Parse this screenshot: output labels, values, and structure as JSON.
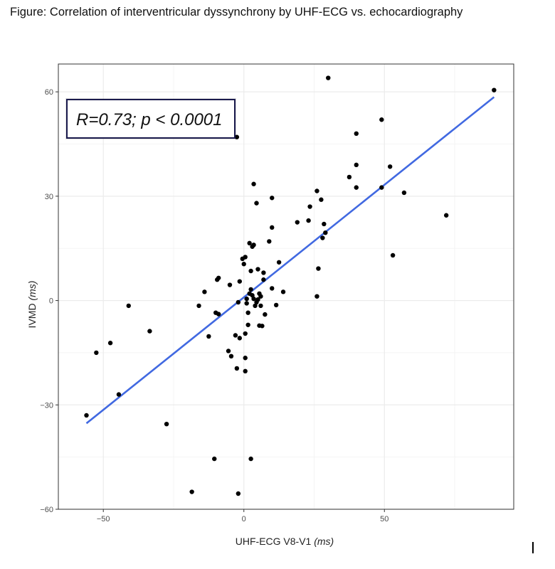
{
  "figure_title": "Figure: Correlation of interventricular dyssynchrony by UHF-ECG vs. echocardiography",
  "colors": {
    "panel_background": "#ffffff",
    "gridline": "#ebebeb",
    "points": "#000000",
    "regression_line": "#4169e1",
    "annotation_border": "#1a1a4d"
  },
  "chart_data": {
    "type": "scatter",
    "title": "",
    "xlabel": "UHF-ECG V8-V1",
    "xlabel_unit": "(ms)",
    "ylabel": "IVMD",
    "ylabel_unit": "(ms)",
    "xlim": [
      -66,
      96
    ],
    "ylim": [
      -60,
      68
    ],
    "xticks": [
      -50,
      0,
      50
    ],
    "yticks": [
      -60,
      -30,
      0,
      30,
      60
    ],
    "xtick_labels": [
      "−50",
      "0",
      "50"
    ],
    "ytick_labels": [
      "−60",
      "−30",
      "0",
      "30",
      "60"
    ],
    "grid": true,
    "annotation": "R=0.73; p < 0.0001",
    "regression_line": {
      "x": [
        -56,
        89
      ],
      "y": [
        -35.3,
        58.5
      ]
    },
    "points": [
      {
        "x": -56,
        "y": -33
      },
      {
        "x": -52.5,
        "y": -15
      },
      {
        "x": -47.5,
        "y": -12.2
      },
      {
        "x": -44.5,
        "y": -27
      },
      {
        "x": -41,
        "y": -1.5
      },
      {
        "x": -33.5,
        "y": -8.8
      },
      {
        "x": -27.5,
        "y": -35.5
      },
      {
        "x": -18.5,
        "y": -55
      },
      {
        "x": -16,
        "y": -1.5
      },
      {
        "x": -14,
        "y": 2.5
      },
      {
        "x": -12.5,
        "y": -10.3
      },
      {
        "x": -10.5,
        "y": -45.5
      },
      {
        "x": -10,
        "y": -3.5
      },
      {
        "x": -9.5,
        "y": 6
      },
      {
        "x": -9,
        "y": 6.5
      },
      {
        "x": -9,
        "y": -3.9
      },
      {
        "x": -5.5,
        "y": -14.5
      },
      {
        "x": -5,
        "y": 4.5
      },
      {
        "x": -4.5,
        "y": -16
      },
      {
        "x": -3,
        "y": -10
      },
      {
        "x": -2.5,
        "y": 47
      },
      {
        "x": -2.5,
        "y": -19.5
      },
      {
        "x": -2,
        "y": -55.5
      },
      {
        "x": -2,
        "y": -0.5
      },
      {
        "x": -1.5,
        "y": -10.8
      },
      {
        "x": -1.5,
        "y": 5.5
      },
      {
        "x": -0.5,
        "y": 12
      },
      {
        "x": 0,
        "y": 10.5
      },
      {
        "x": 0.5,
        "y": 12.5
      },
      {
        "x": 0.5,
        "y": -9.5
      },
      {
        "x": 0.5,
        "y": -20.3
      },
      {
        "x": 0.5,
        "y": -16.5
      },
      {
        "x": 1,
        "y": 0.5
      },
      {
        "x": 1,
        "y": -0.8
      },
      {
        "x": 1.5,
        "y": -7
      },
      {
        "x": 1.5,
        "y": -3.5
      },
      {
        "x": 2,
        "y": 16.5
      },
      {
        "x": 2,
        "y": 2
      },
      {
        "x": 2.5,
        "y": 3.2
      },
      {
        "x": 2.5,
        "y": 8.5
      },
      {
        "x": 2.5,
        "y": -45.5
      },
      {
        "x": 3,
        "y": 1.5
      },
      {
        "x": 3,
        "y": 15.5
      },
      {
        "x": 3.5,
        "y": 0.5
      },
      {
        "x": 3.5,
        "y": 16
      },
      {
        "x": 3.5,
        "y": 33.5
      },
      {
        "x": 4,
        "y": -1.5
      },
      {
        "x": 4.5,
        "y": 28
      },
      {
        "x": 4.5,
        "y": -0.5
      },
      {
        "x": 5,
        "y": 0.3
      },
      {
        "x": 5,
        "y": 9
      },
      {
        "x": 5.5,
        "y": 2
      },
      {
        "x": 5.5,
        "y": -7.2
      },
      {
        "x": 6,
        "y": -1.5
      },
      {
        "x": 6,
        "y": 1.2
      },
      {
        "x": 6.5,
        "y": -7.3
      },
      {
        "x": 7,
        "y": 8
      },
      {
        "x": 7,
        "y": 6
      },
      {
        "x": 7.5,
        "y": -4
      },
      {
        "x": 9,
        "y": 17
      },
      {
        "x": 10,
        "y": 21
      },
      {
        "x": 10,
        "y": 29.5
      },
      {
        "x": 10,
        "y": 3.5
      },
      {
        "x": 11.5,
        "y": -1.3
      },
      {
        "x": 12.5,
        "y": 11
      },
      {
        "x": 14,
        "y": 2.5
      },
      {
        "x": 19,
        "y": 22.5
      },
      {
        "x": 23,
        "y": 23
      },
      {
        "x": 23.5,
        "y": 27
      },
      {
        "x": 26,
        "y": 1.2
      },
      {
        "x": 26,
        "y": 31.5
      },
      {
        "x": 26.5,
        "y": 9.2
      },
      {
        "x": 27.5,
        "y": 29
      },
      {
        "x": 28,
        "y": 18
      },
      {
        "x": 28.5,
        "y": 22
      },
      {
        "x": 29,
        "y": 19.5
      },
      {
        "x": 30,
        "y": 64
      },
      {
        "x": 37.5,
        "y": 35.5
      },
      {
        "x": 40,
        "y": 48
      },
      {
        "x": 40,
        "y": 39
      },
      {
        "x": 40,
        "y": 32.5
      },
      {
        "x": 49,
        "y": 52
      },
      {
        "x": 49,
        "y": 32.5
      },
      {
        "x": 52,
        "y": 38.5
      },
      {
        "x": 53,
        "y": 13
      },
      {
        "x": 57,
        "y": 31
      },
      {
        "x": 72,
        "y": 24.5
      },
      {
        "x": 89,
        "y": 60.5
      }
    ]
  }
}
